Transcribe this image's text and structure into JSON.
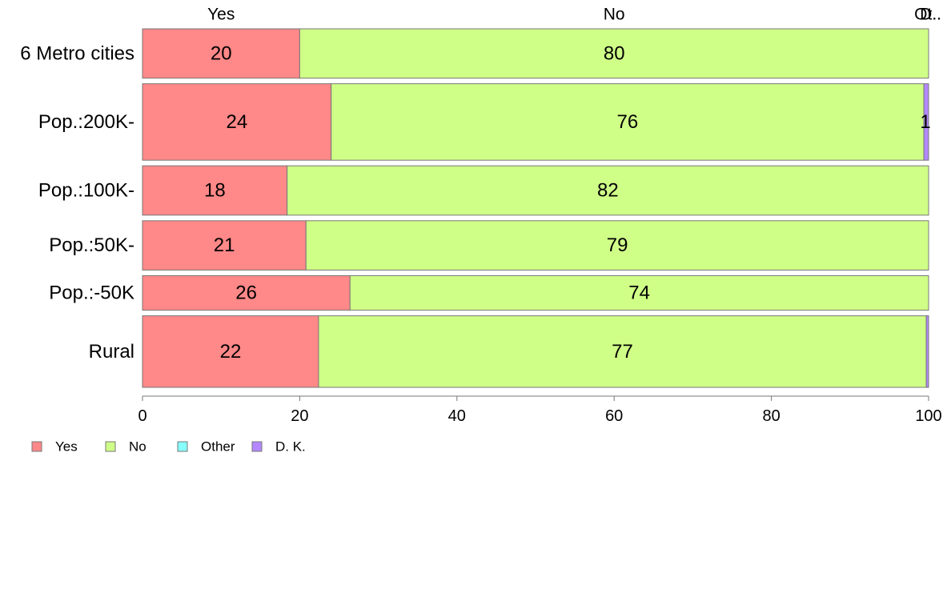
{
  "chart_data": {
    "type": "bar",
    "orientation": "horizontal",
    "stacked": true,
    "categories": [
      "6 Metro cities",
      "Pop.:200K-",
      "Pop.:100K-",
      "Pop.:50K-",
      "Pop.:-50K",
      "Rural"
    ],
    "bar_weights": [
      1.0,
      1.55,
      1.0,
      1.0,
      0.7,
      1.45
    ],
    "series": [
      {
        "name": "Yes",
        "color": "#FF8888",
        "values": [
          20,
          24,
          18.4,
          20.8,
          26.4,
          22.4
        ]
      },
      {
        "name": "No",
        "color": "#D0FF88",
        "values": [
          80,
          75.4,
          81.6,
          79.2,
          73.6,
          77.3
        ]
      },
      {
        "name": "Other",
        "color": "#88FFFF",
        "values": [
          0,
          0,
          0,
          0,
          0,
          0
        ]
      },
      {
        "name": "D. K.",
        "color": "#B388FF",
        "values": [
          0,
          0.6,
          0,
          0,
          0,
          0.3
        ]
      }
    ],
    "value_labels": [
      [
        "20",
        "80",
        "",
        ""
      ],
      [
        "24",
        "76",
        "",
        "1"
      ],
      [
        "18",
        "82",
        "",
        ""
      ],
      [
        "21",
        "79",
        "",
        ""
      ],
      [
        "26",
        "74",
        "",
        ""
      ],
      [
        "22",
        "77",
        "",
        ""
      ]
    ],
    "top_labels": [
      {
        "text": "Yes",
        "x": 10
      },
      {
        "text": "No",
        "x": 60
      },
      {
        "text": "Ot..",
        "x": 99.8
      },
      {
        "text": "D..",
        "x": 99.8
      }
    ],
    "xticks": [
      0,
      20,
      40,
      60,
      80,
      100
    ],
    "xlim": [
      0,
      100
    ],
    "title": "",
    "xlabel": "",
    "ylabel": "",
    "grid": false,
    "legend": {
      "position": "bottom-left",
      "entries": [
        "Yes",
        "No",
        "Other",
        "D. K."
      ]
    },
    "border_color": "#777777"
  }
}
